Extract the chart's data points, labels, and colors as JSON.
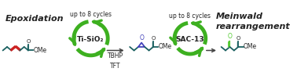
{
  "bg_color": "#ffffff",
  "epoxidation_label": "Epoxidation",
  "meinwald_label": "Meinwald\nrearrangement",
  "cycle_label_left": "up to 8 cycles",
  "cycle_label_right": "up to 8 cycles",
  "catalyst_left": "Ti-SiO₂",
  "catalyst_right": "SAC-13",
  "reagents": "TBHP\nTFT",
  "arrow_color": "#444444",
  "recycle_color": "#3db020",
  "text_color": "#222222",
  "epoxide_color": "#4444bb",
  "ketone_color": "#55cc33",
  "chain_color": "#1a6060",
  "double_bond_color": "#cc2222",
  "figsize": [
    3.78,
    1.01
  ],
  "dpi": 100,
  "recycle_lw": 3.5,
  "mol_lw": 1.3
}
